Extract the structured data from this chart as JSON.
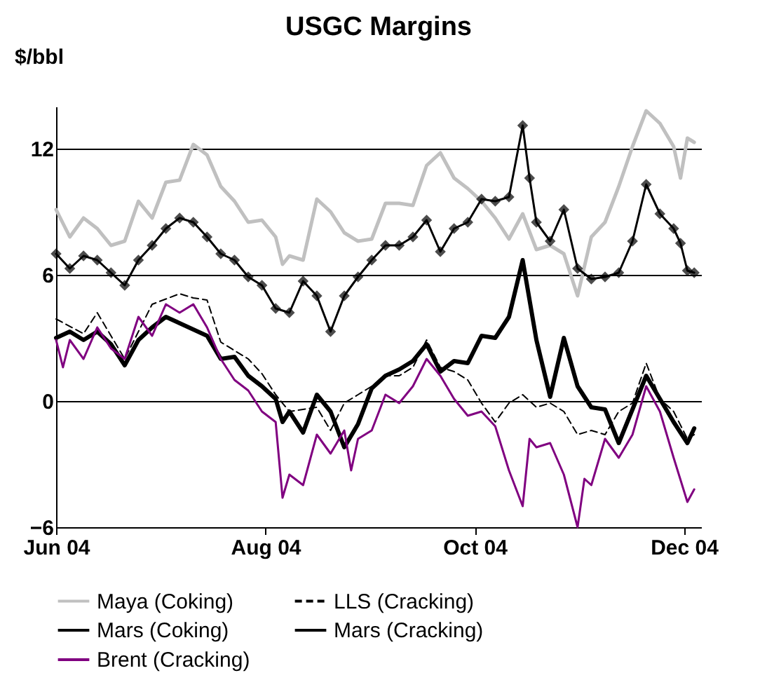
{
  "chart_data": {
    "type": "line",
    "title": "USGC Margins",
    "ylabel": "$/bbl",
    "xlim": [
      "2004-06-01",
      "2004-12-06"
    ],
    "xticks": [
      {
        "value": "2004-06-01",
        "label": "Jun 04"
      },
      {
        "value": "2004-08-01",
        "label": "Aug 04"
      },
      {
        "value": "2004-10-01",
        "label": "Oct 04"
      },
      {
        "value": "2004-12-01",
        "label": "Dec 04"
      }
    ],
    "ylim": [
      -6,
      14
    ],
    "yticks": [
      -6,
      0,
      6,
      12
    ],
    "grid": "y",
    "legend": "bottom",
    "series": [
      {
        "name": "Maya (Coking)",
        "color": "#c0c0c0",
        "line_style": "solid",
        "marker": "none",
        "x": [
          "2004-06-01",
          "2004-06-05",
          "2004-06-09",
          "2004-06-13",
          "2004-06-17",
          "2004-06-21",
          "2004-06-25",
          "2004-06-29",
          "2004-07-03",
          "2004-07-07",
          "2004-07-11",
          "2004-07-15",
          "2004-07-19",
          "2004-07-23",
          "2004-07-27",
          "2004-07-31",
          "2004-08-04",
          "2004-08-06",
          "2004-08-08",
          "2004-08-12",
          "2004-08-16",
          "2004-08-20",
          "2004-08-24",
          "2004-08-28",
          "2004-09-01",
          "2004-09-05",
          "2004-09-09",
          "2004-09-13",
          "2004-09-17",
          "2004-09-21",
          "2004-09-25",
          "2004-09-29",
          "2004-10-03",
          "2004-10-07",
          "2004-10-11",
          "2004-10-15",
          "2004-10-19",
          "2004-10-23",
          "2004-10-27",
          "2004-10-31",
          "2004-11-04",
          "2004-11-08",
          "2004-11-12",
          "2004-11-16",
          "2004-11-20",
          "2004-11-24",
          "2004-11-28",
          "2004-11-30",
          "2004-12-02",
          "2004-12-04"
        ],
        "values": [
          9.1,
          7.8,
          8.7,
          8.2,
          7.4,
          7.6,
          9.5,
          8.7,
          10.4,
          10.5,
          12.2,
          11.7,
          10.2,
          9.5,
          8.5,
          8.6,
          7.8,
          6.5,
          6.9,
          6.7,
          9.6,
          9.0,
          8.0,
          7.6,
          7.7,
          9.4,
          9.4,
          9.3,
          11.2,
          11.8,
          10.6,
          10.1,
          9.5,
          8.7,
          7.7,
          8.9,
          7.2,
          7.4,
          7.0,
          5.0,
          7.8,
          8.5,
          10.2,
          12.1,
          13.8,
          13.2,
          12.1,
          10.6,
          12.5,
          12.3
        ]
      },
      {
        "name": "LLS (Cracking)",
        "color": "#000000",
        "line_style": "dashed",
        "marker": "none",
        "x": [
          "2004-06-01",
          "2004-06-09",
          "2004-06-13",
          "2004-06-21",
          "2004-06-29",
          "2004-07-07",
          "2004-07-11",
          "2004-07-15",
          "2004-07-19",
          "2004-07-27",
          "2004-07-31",
          "2004-08-04",
          "2004-08-08",
          "2004-08-16",
          "2004-08-20",
          "2004-08-24",
          "2004-08-28",
          "2004-09-01",
          "2004-09-05",
          "2004-09-09",
          "2004-09-13",
          "2004-09-17",
          "2004-09-21",
          "2004-09-25",
          "2004-09-29",
          "2004-10-03",
          "2004-10-07",
          "2004-10-11",
          "2004-10-15",
          "2004-10-19",
          "2004-10-23",
          "2004-10-27",
          "2004-10-31",
          "2004-11-04",
          "2004-11-08",
          "2004-11-12",
          "2004-11-16",
          "2004-11-20",
          "2004-11-24",
          "2004-11-28",
          "2004-12-02",
          "2004-12-04"
        ],
        "values": [
          3.9,
          3.2,
          4.2,
          2.0,
          4.6,
          5.1,
          4.9,
          4.8,
          2.8,
          2.0,
          1.3,
          0.3,
          -0.5,
          -0.3,
          -1.4,
          -0.1,
          0.3,
          0.7,
          1.2,
          1.2,
          1.6,
          2.9,
          1.6,
          1.4,
          1.0,
          -0.1,
          -1.0,
          -0.1,
          0.3,
          -0.3,
          -0.1,
          -0.5,
          -1.6,
          -1.4,
          -1.6,
          -0.5,
          -0.1,
          1.8,
          0.1,
          -0.5,
          -1.8,
          -1.6
        ]
      },
      {
        "name": "Mars (Coking)",
        "color": "#000000",
        "line_style": "solid",
        "marker": "diamond",
        "x": [
          "2004-06-01",
          "2004-06-05",
          "2004-06-09",
          "2004-06-13",
          "2004-06-17",
          "2004-06-21",
          "2004-06-25",
          "2004-06-29",
          "2004-07-03",
          "2004-07-07",
          "2004-07-11",
          "2004-07-15",
          "2004-07-19",
          "2004-07-23",
          "2004-07-27",
          "2004-07-31",
          "2004-08-04",
          "2004-08-08",
          "2004-08-12",
          "2004-08-16",
          "2004-08-20",
          "2004-08-24",
          "2004-08-28",
          "2004-09-01",
          "2004-09-05",
          "2004-09-09",
          "2004-09-13",
          "2004-09-17",
          "2004-09-21",
          "2004-09-25",
          "2004-09-29",
          "2004-10-03",
          "2004-10-07",
          "2004-10-11",
          "2004-10-15",
          "2004-10-17",
          "2004-10-19",
          "2004-10-23",
          "2004-10-27",
          "2004-10-31",
          "2004-11-04",
          "2004-11-08",
          "2004-11-12",
          "2004-11-16",
          "2004-11-20",
          "2004-11-24",
          "2004-11-28",
          "2004-11-30",
          "2004-12-02",
          "2004-12-04"
        ],
        "values": [
          7.0,
          6.3,
          6.9,
          6.7,
          6.1,
          5.5,
          6.7,
          7.4,
          8.2,
          8.7,
          8.5,
          7.8,
          7.0,
          6.7,
          5.9,
          5.5,
          4.4,
          4.2,
          5.7,
          5.0,
          3.3,
          5.0,
          5.9,
          6.7,
          7.4,
          7.4,
          7.8,
          8.6,
          7.1,
          8.2,
          8.5,
          9.6,
          9.5,
          9.7,
          13.1,
          10.6,
          8.5,
          7.6,
          9.1,
          6.3,
          5.8,
          5.9,
          6.1,
          7.6,
          10.3,
          8.9,
          8.2,
          7.5,
          6.2,
          6.1
        ]
      },
      {
        "name": "Mars (Cracking)",
        "color": "#000000",
        "line_style": "solid",
        "marker": "none",
        "x": [
          "2004-06-01",
          "2004-06-05",
          "2004-06-09",
          "2004-06-13",
          "2004-06-17",
          "2004-06-21",
          "2004-06-25",
          "2004-06-29",
          "2004-07-03",
          "2004-07-07",
          "2004-07-11",
          "2004-07-15",
          "2004-07-19",
          "2004-07-23",
          "2004-07-27",
          "2004-07-31",
          "2004-08-04",
          "2004-08-06",
          "2004-08-08",
          "2004-08-12",
          "2004-08-16",
          "2004-08-20",
          "2004-08-24",
          "2004-08-28",
          "2004-09-01",
          "2004-09-05",
          "2004-09-09",
          "2004-09-13",
          "2004-09-17",
          "2004-09-21",
          "2004-09-25",
          "2004-09-29",
          "2004-10-03",
          "2004-10-07",
          "2004-10-11",
          "2004-10-15",
          "2004-10-19",
          "2004-10-23",
          "2004-10-27",
          "2004-10-31",
          "2004-11-04",
          "2004-11-08",
          "2004-11-12",
          "2004-11-16",
          "2004-11-20",
          "2004-11-24",
          "2004-11-28",
          "2004-12-02",
          "2004-12-04"
        ],
        "values": [
          3.0,
          3.3,
          2.9,
          3.3,
          2.7,
          1.7,
          2.9,
          3.5,
          4.0,
          3.7,
          3.4,
          3.1,
          2.0,
          2.1,
          1.2,
          0.7,
          0.1,
          -1.0,
          -0.5,
          -1.5,
          0.3,
          -0.5,
          -2.2,
          -1.1,
          0.6,
          1.2,
          1.5,
          1.9,
          2.7,
          1.4,
          1.9,
          1.8,
          3.1,
          3.0,
          4.0,
          6.7,
          2.9,
          0.2,
          3.0,
          0.7,
          -0.3,
          -0.4,
          -2.0,
          -0.4,
          1.2,
          0.1,
          -1.0,
          -2.0,
          -1.3
        ]
      },
      {
        "name": "Brent (Cracking)",
        "color": "#800080",
        "line_style": "solid",
        "marker": "none",
        "x": [
          "2004-06-01",
          "2004-06-03",
          "2004-06-05",
          "2004-06-09",
          "2004-06-13",
          "2004-06-17",
          "2004-06-21",
          "2004-06-25",
          "2004-06-29",
          "2004-07-03",
          "2004-07-07",
          "2004-07-11",
          "2004-07-15",
          "2004-07-19",
          "2004-07-23",
          "2004-07-27",
          "2004-07-31",
          "2004-08-04",
          "2004-08-06",
          "2004-08-08",
          "2004-08-12",
          "2004-08-16",
          "2004-08-20",
          "2004-08-24",
          "2004-08-26",
          "2004-08-28",
          "2004-09-01",
          "2004-09-05",
          "2004-09-09",
          "2004-09-13",
          "2004-09-17",
          "2004-09-21",
          "2004-09-25",
          "2004-09-29",
          "2004-10-03",
          "2004-10-07",
          "2004-10-11",
          "2004-10-15",
          "2004-10-17",
          "2004-10-19",
          "2004-10-23",
          "2004-10-27",
          "2004-10-31",
          "2004-11-02",
          "2004-11-04",
          "2004-11-08",
          "2004-11-12",
          "2004-11-16",
          "2004-11-20",
          "2004-11-24",
          "2004-11-28",
          "2004-12-02",
          "2004-12-04"
        ],
        "values": [
          2.9,
          1.6,
          2.9,
          2.0,
          3.5,
          2.5,
          2.0,
          4.0,
          3.1,
          4.6,
          4.2,
          4.6,
          3.5,
          2.0,
          1.0,
          0.5,
          -0.5,
          -1.0,
          -4.6,
          -3.5,
          -4.0,
          -1.6,
          -2.5,
          -1.4,
          -3.3,
          -1.8,
          -1.4,
          0.3,
          -0.1,
          0.7,
          2.0,
          1.2,
          0.1,
          -0.7,
          -0.5,
          -1.2,
          -3.3,
          -5.0,
          -1.8,
          -2.2,
          -2.0,
          -3.5,
          -6.0,
          -3.7,
          -4.0,
          -1.8,
          -2.7,
          -1.6,
          0.7,
          -0.5,
          -2.7,
          -4.8,
          -4.2
        ]
      }
    ]
  }
}
